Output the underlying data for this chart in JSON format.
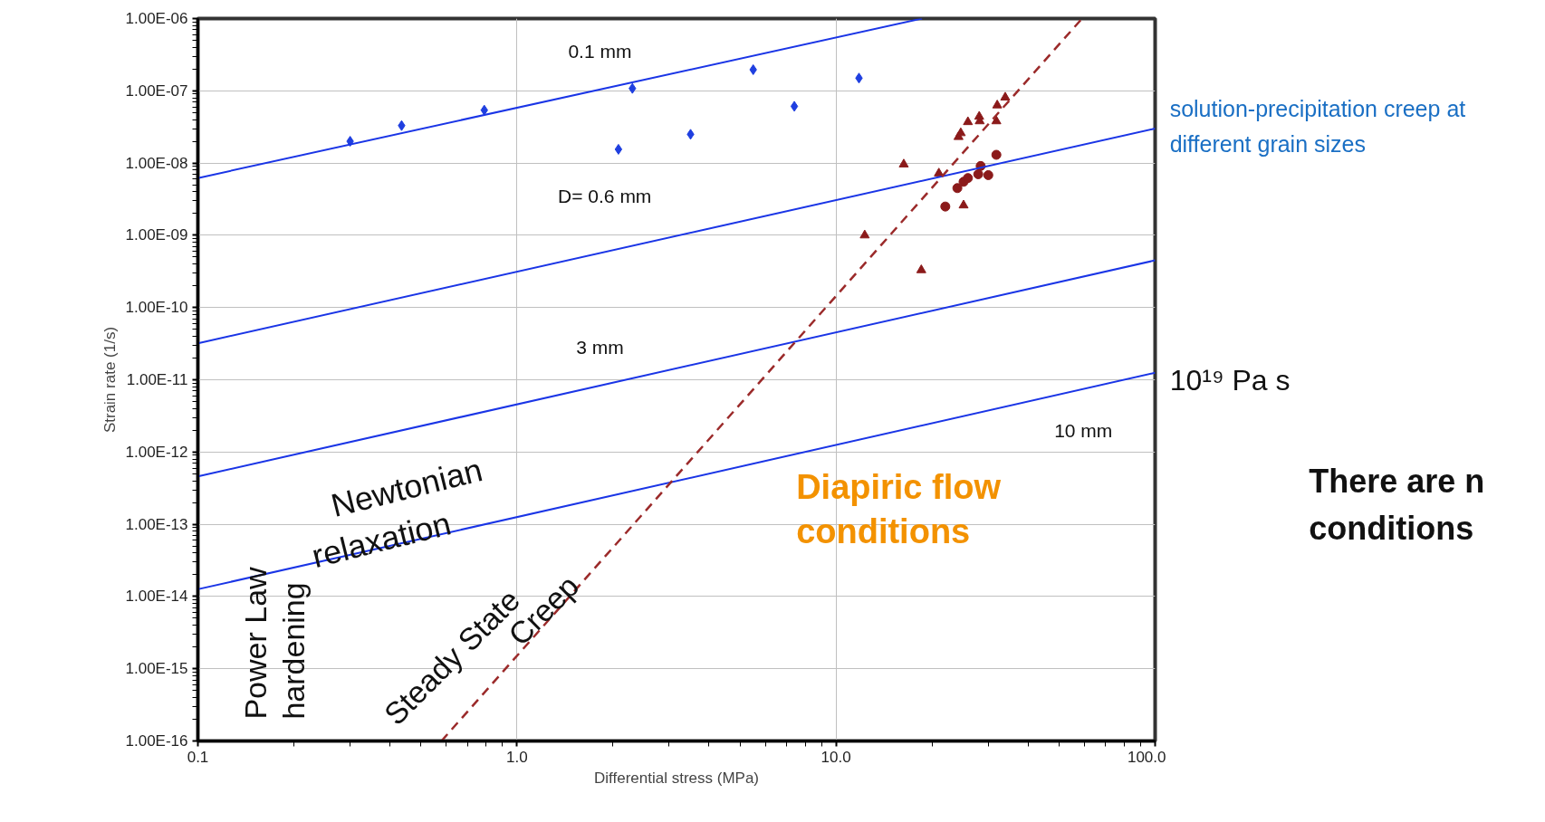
{
  "chart_data": {
    "type": "scatter",
    "xlabel": "Differential stress (MPa)",
    "ylabel": "Strain rate (1/s)",
    "log": "xy",
    "grid": true,
    "xlim": [
      0.1,
      100
    ],
    "ylim": [
      1e-16,
      1e-06
    ],
    "xticks": [
      {
        "value": 0.1,
        "label": "0.1"
      },
      {
        "value": 1,
        "label": "1.0"
      },
      {
        "value": 10,
        "label": "10.0"
      },
      {
        "value": 100,
        "label": "100.0"
      }
    ],
    "yticks": [
      {
        "value": 1e-16,
        "label": "1.00E-16"
      },
      {
        "value": 1e-15,
        "label": "1.00E-15"
      },
      {
        "value": 1e-14,
        "label": "1.00E-14"
      },
      {
        "value": 1e-13,
        "label": "1.00E-13"
      },
      {
        "value": 1e-12,
        "label": "1.00E-12"
      },
      {
        "value": 1e-11,
        "label": "1.00E-11"
      },
      {
        "value": 1e-10,
        "label": "1.00E-10"
      },
      {
        "value": 1e-09,
        "label": "1.00E-09"
      },
      {
        "value": 1e-08,
        "label": "1.00E-08"
      },
      {
        "value": 1e-07,
        "label": "1.00E-07"
      },
      {
        "value": 1e-06,
        "label": "1.00E-06"
      }
    ],
    "series": [
      {
        "marker": "diamond",
        "color": "#1f3fe0",
        "x": [
          0.3,
          0.435,
          0.79,
          2.3,
          2.08,
          3.5,
          5.5,
          7.4,
          11.8
        ],
        "values": [
          2e-08,
          3.3e-08,
          5.4e-08,
          1.08e-07,
          1.55e-08,
          2.5e-08,
          1.96e-07,
          6.1e-08,
          1.5e-07
        ]
      },
      {
        "marker": "triangle",
        "color": "#8b1a1a",
        "x": [
          16.3,
          21.0,
          12.3,
          18.5,
          25.1,
          24.2,
          24.6,
          25.9,
          28.1,
          28.2,
          31.8,
          32.0,
          33.9
        ],
        "values": [
          9.6e-09,
          7.2e-09,
          1e-09,
          3.3e-10,
          2.6e-09,
          2.3e-08,
          2.6e-08,
          3.7e-08,
          4.4e-08,
          3.8e-08,
          3.8e-08,
          6.3e-08,
          8.1e-08
        ]
      },
      {
        "marker": "circle",
        "color": "#8b1a1a",
        "x": [
          22.0,
          24.0,
          25.1,
          25.9,
          27.9,
          28.4,
          30.0,
          31.8
        ],
        "values": [
          2.5e-09,
          4.5e-09,
          5.5e-09,
          6.2e-09,
          7e-09,
          9.1e-09,
          6.8e-09,
          1.3e-08
        ]
      },
      {
        "type": "line",
        "line_style": "solid",
        "color": "#1a35e6",
        "x": [
          0.1,
          18.6
        ],
        "values": [
          6.2e-09,
          1e-06
        ]
      },
      {
        "type": "line",
        "line_style": "solid",
        "color": "#1a35e6",
        "x": [
          0.1,
          100
        ],
        "values": [
          3.2e-11,
          3e-08
        ]
      },
      {
        "type": "line",
        "line_style": "solid",
        "color": "#1a35e6",
        "x": [
          0.1,
          100
        ],
        "values": [
          4.6e-13,
          4.5e-10
        ]
      },
      {
        "type": "line",
        "line_style": "solid",
        "color": "#1a35e6",
        "x": [
          0.1,
          100
        ],
        "values": [
          1.26e-14,
          1.25e-11
        ]
      },
      {
        "type": "line",
        "line_style": "dashed",
        "color": "#9b2a2a",
        "x": [
          0.58,
          59
        ],
        "values": [
          1e-16,
          1e-06
        ]
      }
    ],
    "annotations": [
      "0.1 mm",
      "D= 0.6 mm",
      "3 mm",
      "10 mm",
      "10¹⁹ Pa s",
      "solution-precipitation creep at",
      "different grain sizes",
      "Diapiric flow",
      "conditions",
      "There are n",
      "conditions",
      "Newtonian",
      "relaxation",
      "Power Law",
      "hardening",
      "Steady State",
      "Creep"
    ]
  }
}
